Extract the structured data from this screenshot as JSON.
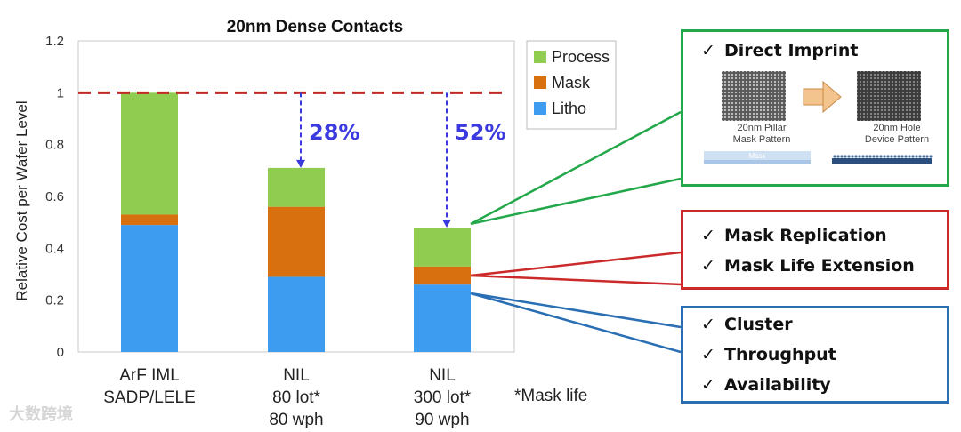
{
  "chart_data": {
    "type": "bar",
    "stacked": true,
    "title": "20nm Dense Contacts",
    "ylabel": "Relative Cost per Wafer Level",
    "ylim": [
      0,
      1.2
    ],
    "yticks": [
      "0",
      "0.2",
      "0.4",
      "0.6",
      "0.8",
      "1",
      "1.2"
    ],
    "categories": [
      [
        "ArF IML",
        "SADP/LELE"
      ],
      [
        "NIL",
        "80 lot*",
        "80 wph"
      ],
      [
        "NIL",
        "300 lot*",
        "90 wph"
      ]
    ],
    "series": [
      {
        "name": "Litho",
        "color": "#3d9cf0",
        "values": [
          0.49,
          0.29,
          0.26
        ]
      },
      {
        "name": "Mask",
        "color": "#d9700f",
        "values": [
          0.04,
          0.27,
          0.07
        ]
      },
      {
        "name": "Process",
        "color": "#8fcc4f",
        "values": [
          0.47,
          0.15,
          0.15
        ]
      }
    ],
    "reference_line": {
      "y": 1.0,
      "color": "#c0282a",
      "style": "dashed"
    },
    "reductions": [
      {
        "bar_index": 1,
        "label": "28%"
      },
      {
        "bar_index": 2,
        "label": "52%"
      }
    ],
    "legend_position": "top-right",
    "grid": false,
    "footnote": "*Mask life"
  },
  "annotations": {
    "imprint": {
      "color": "#22a84a",
      "title": "Direct Imprint",
      "pillar_caption": [
        "20nm Pillar",
        "Mask Pattern"
      ],
      "hole_caption": [
        "20nm Hole",
        "Device Pattern"
      ],
      "mask_label": "Mask"
    },
    "mask": {
      "color": "#cc2a2a",
      "items": [
        "Mask Replication",
        "Mask Life Extension"
      ]
    },
    "litho": {
      "color": "#2a6fb4",
      "items": [
        "Cluster",
        "Throughput",
        "Availability"
      ]
    },
    "check_symbol": "✓"
  },
  "watermark": "大数跨境"
}
